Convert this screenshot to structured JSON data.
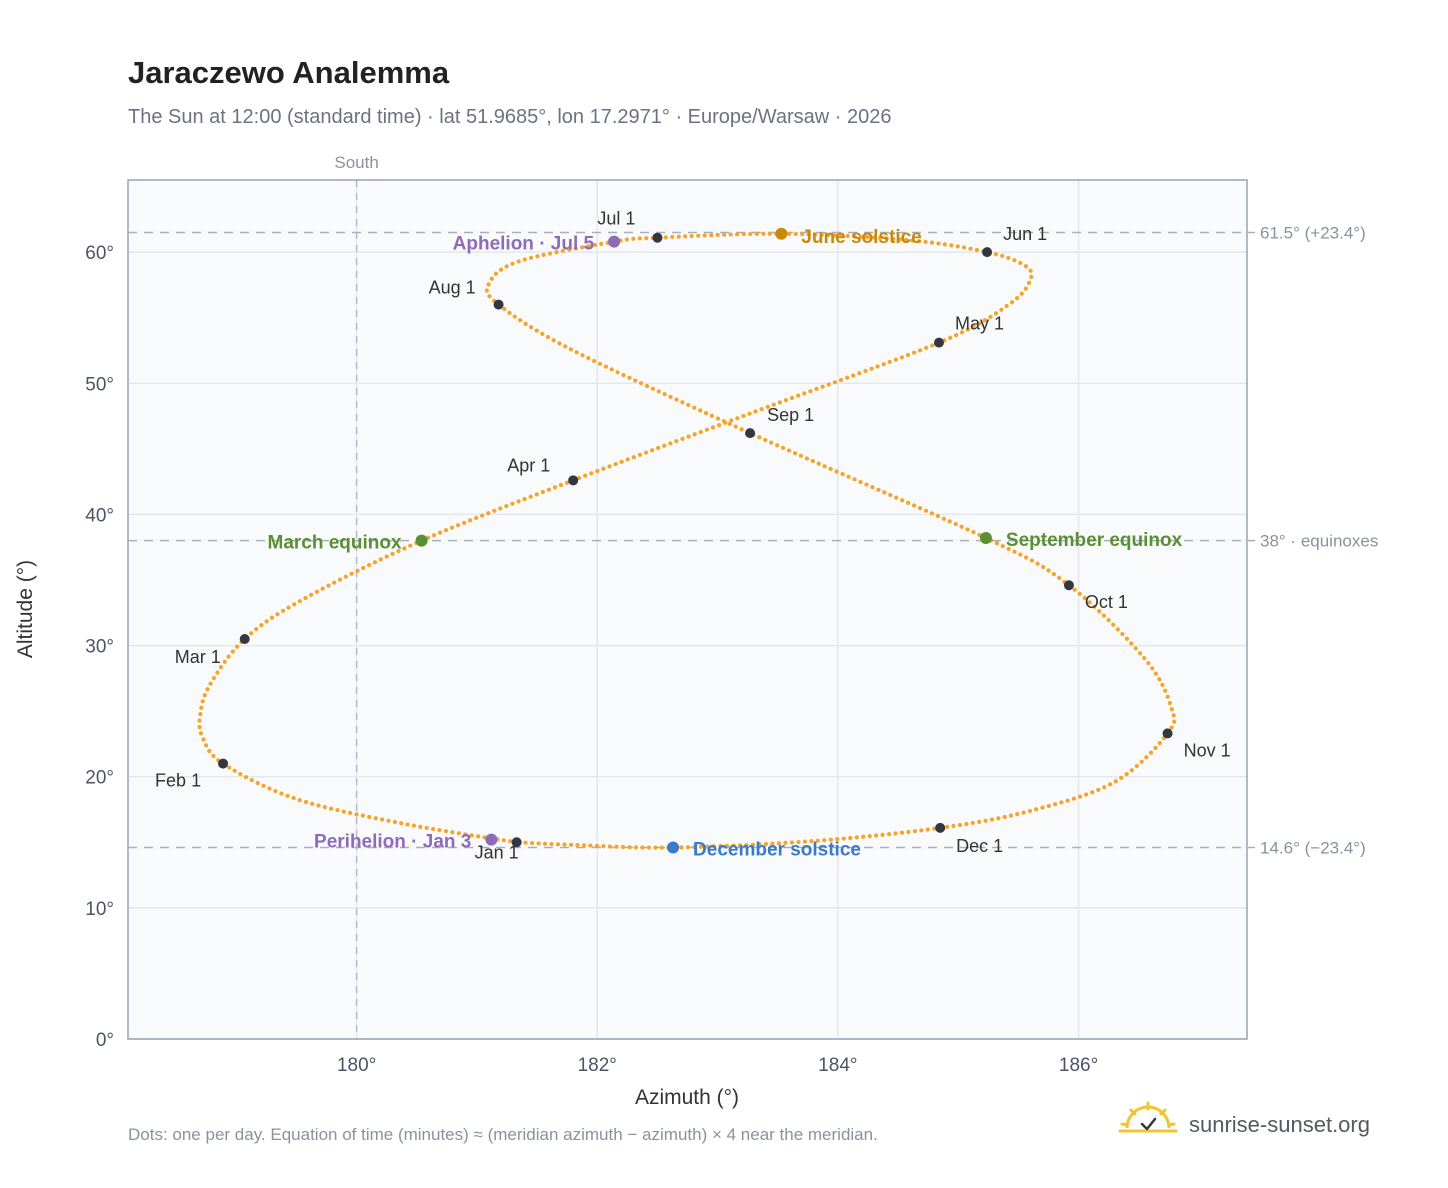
{
  "header": {
    "title": "Jaraczewo Analemma",
    "subtitle": "The Sun at 12:00 (standard time) · lat 51.9685°, lon 17.2971° · Europe/Warsaw · 2026"
  },
  "footer": {
    "note": "Dots: one per day. Equation of time (minutes) ≈ (meridian azimuth − azimuth) × 4 near the meridian.",
    "brand": "sunrise-sunset.org"
  },
  "chart_data": {
    "type": "scatter",
    "xlabel": "Azimuth (°)",
    "ylabel": "Altitude (°)",
    "xlim": [
      178.1,
      187.4
    ],
    "ylim": [
      0,
      65.5
    ],
    "x_ticks": [
      180,
      182,
      184,
      186
    ],
    "x_tick_labels": [
      "180°",
      "182°",
      "184°",
      "186°"
    ],
    "y_ticks": [
      0,
      10,
      20,
      30,
      40,
      50,
      60
    ],
    "y_tick_labels": [
      "0°",
      "10°",
      "20°",
      "30°",
      "40°",
      "50°",
      "60°"
    ],
    "grid": true,
    "south_line": {
      "x": 180,
      "label": "South"
    },
    "reference_lines": [
      {
        "y": 61.5,
        "label": "61.5° (+23.4°)"
      },
      {
        "y": 38,
        "label": "38° · equinoxes"
      },
      {
        "y": 14.6,
        "label": "14.6° (−23.4°)"
      }
    ],
    "month_markers": [
      {
        "label": "Jan 1",
        "az": 181.33,
        "alt": 15.0
      },
      {
        "label": "Feb 1",
        "az": 178.89,
        "alt": 21.0
      },
      {
        "label": "Mar 1",
        "az": 179.07,
        "alt": 30.5
      },
      {
        "label": "Apr 1",
        "az": 181.8,
        "alt": 42.6
      },
      {
        "label": "May 1",
        "az": 184.84,
        "alt": 53.1
      },
      {
        "label": "Jun 1",
        "az": 185.24,
        "alt": 60.0
      },
      {
        "label": "Jul 1",
        "az": 182.5,
        "alt": 61.1
      },
      {
        "label": "Aug 1",
        "az": 181.18,
        "alt": 56.0
      },
      {
        "label": "Sep 1",
        "az": 183.27,
        "alt": 46.2
      },
      {
        "label": "Oct 1",
        "az": 185.92,
        "alt": 34.6
      },
      {
        "label": "Nov 1",
        "az": 186.74,
        "alt": 23.3
      },
      {
        "label": "Dec 1",
        "az": 184.85,
        "alt": 16.1
      }
    ],
    "events": [
      {
        "label": "June solstice",
        "az": 183.53,
        "alt": 61.4,
        "color": "#c98a0b"
      },
      {
        "label": "Aphelion · Jul 5",
        "az": 182.14,
        "alt": 60.8,
        "color": "#8e6bb8"
      },
      {
        "label": "March equinox",
        "az": 180.54,
        "alt": 38.0,
        "color": "#5a8f32"
      },
      {
        "label": "September equinox",
        "az": 185.23,
        "alt": 38.2,
        "color": "#5a8f32"
      },
      {
        "label": "Perihelion · Jan 3",
        "az": 181.12,
        "alt": 15.2,
        "color": "#8e6bb8"
      },
      {
        "label": "December solstice",
        "az": 182.63,
        "alt": 14.6,
        "color": "#3a7bc8"
      }
    ],
    "analemma_path": [
      [
        181.33,
        15.0
      ],
      [
        180.4,
        16.4
      ],
      [
        179.5,
        18.3
      ],
      [
        178.89,
        21.0
      ],
      [
        178.72,
        23.0
      ],
      [
        178.7,
        24.7
      ],
      [
        178.78,
        27.0
      ],
      [
        179.07,
        30.5
      ],
      [
        179.55,
        33.5
      ],
      [
        180.54,
        38.0
      ],
      [
        181.8,
        42.6
      ],
      [
        183.3,
        47.8
      ],
      [
        184.84,
        53.1
      ],
      [
        185.42,
        56.0
      ],
      [
        185.6,
        57.9
      ],
      [
        185.55,
        59.0
      ],
      [
        185.24,
        60.0
      ],
      [
        184.6,
        60.9
      ],
      [
        183.53,
        61.4
      ],
      [
        182.5,
        61.1
      ],
      [
        182.14,
        60.8
      ],
      [
        181.35,
        59.3
      ],
      [
        181.1,
        57.6
      ],
      [
        181.18,
        56.0
      ],
      [
        181.8,
        52.5
      ],
      [
        183.27,
        46.2
      ],
      [
        185.23,
        38.2
      ],
      [
        185.92,
        34.6
      ],
      [
        186.55,
        29.0
      ],
      [
        186.77,
        25.3
      ],
      [
        186.74,
        23.3
      ],
      [
        186.3,
        19.6
      ],
      [
        185.6,
        17.4
      ],
      [
        184.85,
        16.1
      ],
      [
        183.8,
        15.1
      ],
      [
        182.63,
        14.6
      ],
      [
        181.8,
        14.8
      ],
      [
        181.33,
        15.0
      ]
    ],
    "path_color": "#f4a52a",
    "marker_color": "#333840"
  }
}
